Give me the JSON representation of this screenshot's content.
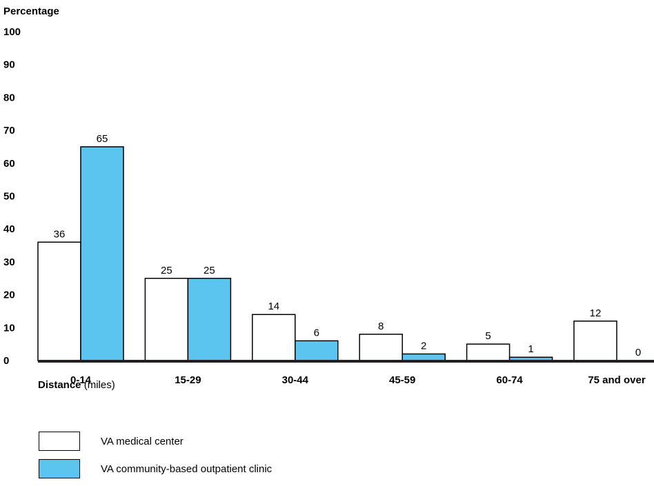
{
  "chart_data": {
    "type": "bar",
    "ylabel": "Percentage",
    "ylim": [
      0,
      100
    ],
    "yticks": [
      "100",
      "90",
      "80",
      "70",
      "60",
      "50",
      "40",
      "30",
      "20",
      "10",
      "0"
    ],
    "categories": [
      "0-14",
      "15-29",
      "30-44",
      "45-59",
      "60-74",
      "75 and over"
    ],
    "series": [
      {
        "name": "VA medical center",
        "values": [
          36,
          25,
          14,
          8,
          5,
          12
        ],
        "color": "#ffffff"
      },
      {
        "name": "VA community-based outpatient clinic",
        "values": [
          65,
          25,
          6,
          2,
          1,
          0
        ],
        "color": "#5bc5ef"
      }
    ],
    "xlabel_main": "Distance",
    "xlabel_unit": "(miles)",
    "grid": false,
    "legend_position": "bottom-left"
  }
}
